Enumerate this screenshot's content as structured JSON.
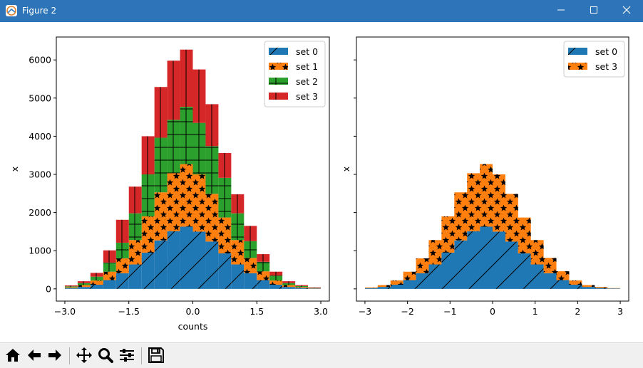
{
  "window": {
    "title": "Figure 2",
    "min_icon": "minimize-icon",
    "max_icon": "maximize-icon",
    "close_icon": "close-icon"
  },
  "toolbar": {
    "icons": [
      "home-icon",
      "back-icon",
      "forward-icon",
      "pan-icon",
      "zoom-icon",
      "configure-icon",
      "save-icon"
    ]
  },
  "colors": {
    "set0": "#1f77b4",
    "set1": "#ff7f0e",
    "set2": "#2ca02c",
    "set3": "#d62728",
    "titlebar": "#2d75b8"
  },
  "chart_data": [
    {
      "type": "bar",
      "stacked": true,
      "bins_left_edge": [
        -3.0,
        -2.7,
        -2.4,
        -2.1,
        -1.8,
        -1.5,
        -1.2,
        -0.9,
        -0.6,
        -0.3,
        0.0,
        0.3,
        0.6,
        0.9,
        1.2,
        1.5,
        1.8,
        2.1,
        2.4,
        2.7
      ],
      "bin_width": 0.3,
      "series": [
        {
          "name": "set 0",
          "hatch": "/",
          "values": [
            20,
            50,
            110,
            230,
            410,
            640,
            950,
            1270,
            1510,
            1630,
            1500,
            1240,
            930,
            640,
            410,
            230,
            110,
            50,
            25,
            10
          ]
        },
        {
          "name": "set 1",
          "hatch": "*",
          "values": [
            20,
            50,
            110,
            220,
            390,
            640,
            950,
            1260,
            1520,
            1640,
            1500,
            1250,
            940,
            640,
            400,
            230,
            110,
            50,
            25,
            10
          ]
        },
        {
          "name": "set 2",
          "hatch": "+",
          "values": [
            25,
            50,
            100,
            240,
            410,
            700,
            1100,
            1430,
            1400,
            1500,
            1350,
            1250,
            1040,
            700,
            440,
            250,
            130,
            50,
            25,
            10
          ]
        },
        {
          "name": "set 3",
          "hatch": "|",
          "values": [
            25,
            50,
            100,
            320,
            600,
            700,
            1000,
            1330,
            1550,
            1500,
            1400,
            1100,
            650,
            500,
            400,
            200,
            100,
            50,
            25,
            10
          ]
        }
      ],
      "xlabel": "counts",
      "ylabel": "x",
      "xlim": [
        -3.2,
        3.2
      ],
      "ylim": [
        -320,
        6600
      ],
      "xticks": [
        -3.0,
        -1.5,
        0.0,
        1.5,
        3.0
      ],
      "xtick_labels": [
        "−3.0",
        "−1.5",
        "0.0",
        "1.5",
        "3.0"
      ],
      "yticks": [
        0,
        1000,
        2000,
        3000,
        4000,
        5000,
        6000
      ],
      "ytick_labels": [
        "0",
        "1000",
        "2000",
        "3000",
        "4000",
        "5000",
        "6000"
      ],
      "legend_position": "top-right"
    },
    {
      "type": "area",
      "step": true,
      "stacked": true,
      "bins_left_edge": [
        -3.0,
        -2.7,
        -2.4,
        -2.1,
        -1.8,
        -1.5,
        -1.2,
        -0.9,
        -0.6,
        -0.3,
        0.0,
        0.3,
        0.6,
        0.9,
        1.2,
        1.5,
        1.8,
        2.1,
        2.4,
        2.7
      ],
      "bin_width": 0.3,
      "series": [
        {
          "name": "set 0",
          "hatch": "/",
          "values": [
            20,
            50,
            110,
            230,
            410,
            640,
            950,
            1270,
            1510,
            1630,
            1500,
            1240,
            930,
            640,
            410,
            230,
            110,
            50,
            25,
            10
          ]
        },
        {
          "name": "set 3",
          "hatch": "*",
          "values": [
            20,
            50,
            110,
            220,
            390,
            640,
            950,
            1260,
            1520,
            1640,
            1500,
            1250,
            940,
            640,
            400,
            230,
            110,
            50,
            25,
            10
          ]
        }
      ],
      "xlabel": "",
      "ylabel": "x",
      "xlim": [
        -3.2,
        3.2
      ],
      "ylim": [
        -320,
        6600
      ],
      "xticks": [
        -3,
        -2,
        -1,
        0,
        1,
        2,
        3
      ],
      "xtick_labels": [
        "−3",
        "−2",
        "−1",
        "0",
        "1",
        "2",
        "3"
      ],
      "yticks": [
        0,
        1000,
        2000,
        3000,
        4000,
        5000,
        6000
      ],
      "legend_position": "top-right"
    }
  ]
}
